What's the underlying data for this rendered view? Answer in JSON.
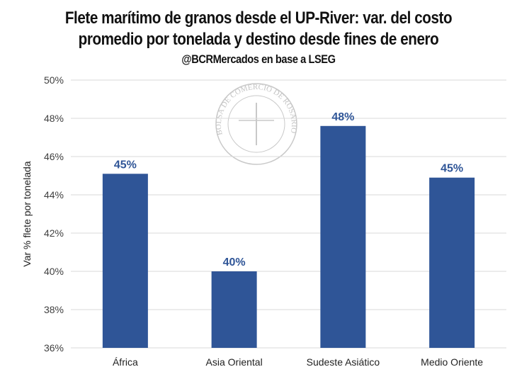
{
  "chart_data": {
    "type": "bar",
    "title_line1": "Flete marítimo de granos desde el UP-River: var. del costo",
    "title_line2": "promedio por tonelada y destino desde fines de enero",
    "subtitle": "@BCRMercados en base a LSEG",
    "xlabel": "",
    "ylabel": "Var % flete por tonelada",
    "ylim": [
      36,
      50
    ],
    "yticks": [
      36,
      38,
      40,
      42,
      44,
      46,
      48,
      50
    ],
    "ytick_labels": [
      "36%",
      "38%",
      "40%",
      "42%",
      "44%",
      "46%",
      "48%",
      "50%"
    ],
    "categories": [
      "África",
      "Asia Oriental",
      "Sudeste Asiático",
      "Medio Oriente"
    ],
    "values": [
      45.1,
      40.0,
      47.6,
      44.9
    ],
    "data_labels": [
      "45%",
      "40%",
      "48%",
      "45%"
    ],
    "bar_color": "#2F5597",
    "label_color": "#2F5597",
    "grid": true,
    "watermark": "BOLSA DE COMERCIO DE ROSARIO"
  }
}
